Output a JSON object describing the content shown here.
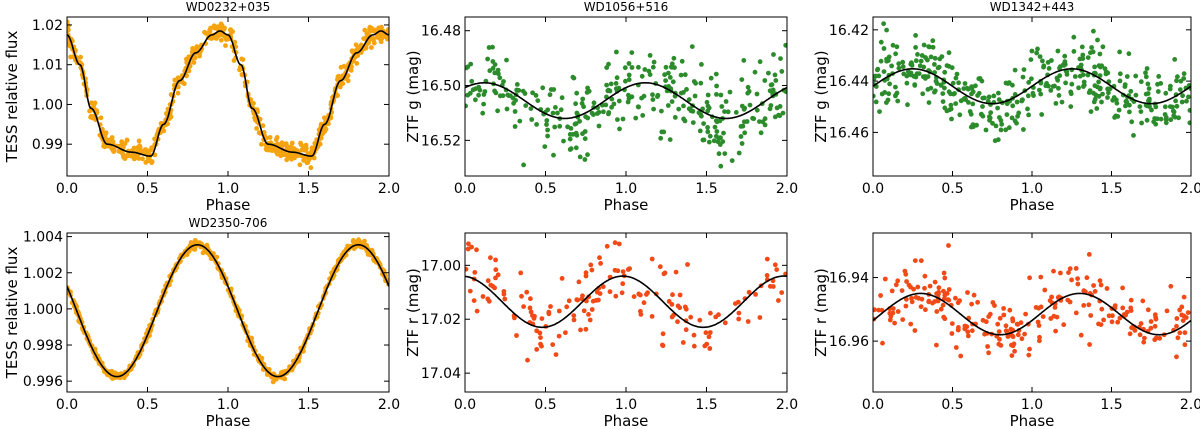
{
  "chart_data": [
    {
      "type": "scatter",
      "title": "WD0232+035",
      "xlabel": "Phase",
      "ylabel": "TESS relative flux",
      "xlim": [
        0,
        2
      ],
      "ylim": [
        0.982,
        1.022
      ],
      "y_inverted": false,
      "xticks": [
        "0.0",
        "0.5",
        "1.0",
        "1.5",
        "2.0"
      ],
      "yticks": [
        0.99,
        1.0,
        1.01,
        1.02
      ],
      "ytick_labels": [
        "0.99",
        "1.00",
        "1.01",
        "1.02"
      ],
      "series": [
        {
          "kind": "points",
          "color": "#f5a30f",
          "npoints": 700,
          "scatter": 0.0012
        },
        {
          "kind": "model",
          "color": "#000000"
        }
      ],
      "model_curve": {
        "x": [
          0,
          0.08,
          0.15,
          0.25,
          0.4,
          0.52,
          0.6,
          0.7,
          0.8,
          0.9,
          0.95,
          1.0,
          1.08,
          1.15,
          1.25,
          1.4,
          1.52,
          1.6,
          1.7,
          1.8,
          1.9,
          1.95,
          2.0
        ],
        "y": [
          1.0175,
          1.01,
          0.999,
          0.99,
          0.988,
          0.987,
          0.995,
          1.006,
          1.013,
          1.0175,
          1.0185,
          1.0175,
          1.01,
          0.999,
          0.99,
          0.988,
          0.987,
          0.995,
          1.006,
          1.013,
          1.0175,
          1.0185,
          1.0175
        ]
      },
      "grid": false
    },
    {
      "type": "scatter",
      "title": "WD1056+516",
      "xlabel": "Phase",
      "ylabel": "ZTF g (mag)",
      "xlim": [
        0,
        2
      ],
      "ylim": [
        16.475,
        16.533
      ],
      "y_inverted": true,
      "xticks": [
        "0.0",
        "0.5",
        "1.0",
        "1.5",
        "2.0"
      ],
      "yticks": [
        16.48,
        16.5,
        16.52
      ],
      "ytick_labels": [
        "16.48",
        "16.50",
        "16.52"
      ],
      "series": [
        {
          "kind": "points",
          "color": "#2c8c2c",
          "npoints": 340,
          "scatter": 0.0075
        },
        {
          "kind": "model",
          "color": "#000000"
        }
      ],
      "model_sine": {
        "mean": 16.5055,
        "amplitude": 0.0065,
        "phase_of_max_brightness": 0.12
      },
      "grid": false
    },
    {
      "type": "scatter",
      "title": "WD1342+443",
      "xlabel": "Phase",
      "ylabel": "ZTF g (mag)",
      "xlim": [
        0,
        2
      ],
      "ylim": [
        16.415,
        16.477
      ],
      "y_inverted": true,
      "xticks": [
        "0.0",
        "0.5",
        "1.0",
        "1.5",
        "2.0"
      ],
      "yticks": [
        16.42,
        16.44,
        16.46
      ],
      "ytick_labels": [
        "16.42",
        "16.44",
        "16.46"
      ],
      "series": [
        {
          "kind": "points",
          "color": "#2c8c2c",
          "npoints": 420,
          "scatter": 0.0065
        },
        {
          "kind": "model",
          "color": "#000000"
        }
      ],
      "model_sine": {
        "mean": 16.442,
        "amplitude": 0.0068,
        "phase_of_max_brightness": 0.25
      },
      "grid": false
    },
    {
      "type": "scatter",
      "title": "WD2350-706",
      "xlabel": "Phase",
      "ylabel": "TESS relative flux",
      "xlim": [
        0,
        2
      ],
      "ylim": [
        0.9954,
        1.0042
      ],
      "y_inverted": false,
      "xticks": [
        "0.0",
        "0.5",
        "1.0",
        "1.5",
        "2.0"
      ],
      "yticks": [
        0.996,
        0.998,
        1.0,
        1.002,
        1.004
      ],
      "ytick_labels": [
        "0.996",
        "0.998",
        "1.000",
        "1.002",
        "1.004"
      ],
      "series": [
        {
          "kind": "points",
          "color": "#f5a30f",
          "npoints": 700,
          "scatter": 0.00012
        },
        {
          "kind": "model",
          "color": "#000000"
        }
      ],
      "model_sine": {
        "mean": 0.9999,
        "amplitude": 0.00365,
        "phase_of_max_brightness": 0.81
      },
      "grid": false
    },
    {
      "type": "scatter",
      "title": "",
      "xlabel": "Phase",
      "ylabel": "ZTF r (mag)",
      "xlim": [
        0,
        2
      ],
      "ylim": [
        16.988,
        17.047
      ],
      "y_inverted": true,
      "xticks": [
        "0.0",
        "0.5",
        "1.0",
        "1.5",
        "2.0"
      ],
      "yticks": [
        17.0,
        17.02,
        17.04
      ],
      "ytick_labels": [
        "17.00",
        "17.02",
        "17.04"
      ],
      "series": [
        {
          "kind": "points",
          "color": "#f24a16",
          "npoints": 170,
          "scatter": 0.0065
        },
        {
          "kind": "model",
          "color": "#000000"
        }
      ],
      "model_sine": {
        "mean": 17.0135,
        "amplitude": 0.0095,
        "phase_of_max_brightness": 0.98
      },
      "grid": false
    },
    {
      "type": "scatter",
      "title": "",
      "xlabel": "Phase",
      "ylabel": "ZTF r (mag)",
      "xlim": [
        0,
        2
      ],
      "ylim": [
        16.926,
        16.976
      ],
      "y_inverted": true,
      "xticks": [
        "0.0",
        "0.5",
        "1.0",
        "1.5",
        "2.0"
      ],
      "yticks": [
        16.94,
        16.96
      ],
      "ytick_labels": [
        "16.94",
        "16.96"
      ],
      "series": [
        {
          "kind": "points",
          "color": "#f24a16",
          "npoints": 260,
          "scatter": 0.0055
        },
        {
          "kind": "model",
          "color": "#000000"
        }
      ],
      "model_sine": {
        "mean": 16.9515,
        "amplitude": 0.0065,
        "phase_of_max_brightness": 0.3
      },
      "grid": false
    }
  ]
}
